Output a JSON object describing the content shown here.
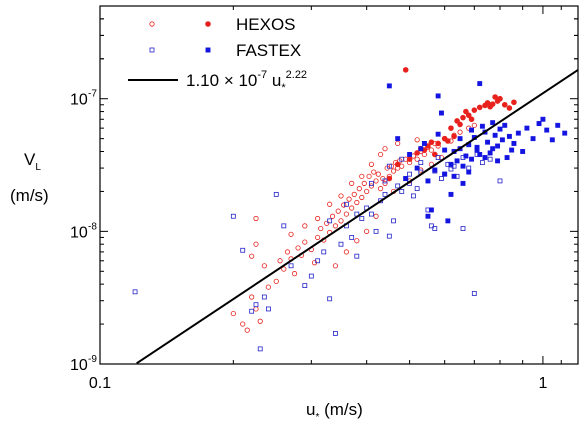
{
  "chart_data": {
    "type": "scatter",
    "xscale": "log",
    "yscale": "log",
    "xlim": [
      0.1,
      1.2
    ],
    "ylim": [
      1e-09,
      5e-07
    ],
    "x_ticks": [
      {
        "value": 0.1,
        "label": "0.1"
      },
      {
        "value": 1,
        "label": "1"
      }
    ],
    "y_ticks": [
      {
        "value": 1e-09,
        "label": "10",
        "exp": "-9"
      },
      {
        "value": 1e-08,
        "label": "10",
        "exp": "-8"
      },
      {
        "value": 1e-07,
        "label": "10",
        "exp": "-7"
      }
    ],
    "xlabel": {
      "main": "u",
      "sub": "*",
      "unit": " (m/s)"
    },
    "ylabel": {
      "main": "V",
      "sub": "L",
      "unit": "(m/s)"
    },
    "legend_position": "top-left",
    "grid": false,
    "series": [
      {
        "name": "HEXOS",
        "marker": "open-circle",
        "color": "#e8211d",
        "points": [
          [
            0.2,
            2.4e-09
          ],
          [
            0.21,
            2e-09
          ],
          [
            0.215,
            1.8e-09
          ],
          [
            0.22,
            3.2e-09
          ],
          [
            0.225,
            2.6e-09
          ],
          [
            0.23,
            2.1e-09
          ],
          [
            0.22,
            6.5e-09
          ],
          [
            0.225,
            8e-09
          ],
          [
            0.225,
            1.25e-08
          ],
          [
            0.235,
            5.5e-09
          ],
          [
            0.24,
            3.8e-09
          ],
          [
            0.25,
            4.2e-09
          ],
          [
            0.255,
            6e-09
          ],
          [
            0.26,
            5.2e-09
          ],
          [
            0.265,
            7e-09
          ],
          [
            0.27,
            6.2e-09
          ],
          [
            0.275,
            4.8e-09
          ],
          [
            0.28,
            7.5e-09
          ],
          [
            0.285,
            6.6e-09
          ],
          [
            0.29,
            8.3e-09
          ],
          [
            0.3,
            7.3e-09
          ],
          [
            0.305,
            5.8e-09
          ],
          [
            0.31,
            9e-09
          ],
          [
            0.315,
            1.05e-08
          ],
          [
            0.32,
            8.6e-09
          ],
          [
            0.325,
            1.15e-08
          ],
          [
            0.33,
            9.8e-09
          ],
          [
            0.335,
            1.3e-08
          ],
          [
            0.34,
            1.1e-08
          ],
          [
            0.345,
            1.42e-08
          ],
          [
            0.35,
            1.2e-08
          ],
          [
            0.355,
            1.58e-08
          ],
          [
            0.36,
            1.35e-08
          ],
          [
            0.365,
            1.75e-08
          ],
          [
            0.37,
            1.5e-08
          ],
          [
            0.375,
            1.9e-08
          ],
          [
            0.38,
            1.65e-08
          ],
          [
            0.385,
            2.1e-08
          ],
          [
            0.39,
            1.8e-08
          ],
          [
            0.395,
            2.3e-08
          ],
          [
            0.4,
            2e-08
          ],
          [
            0.405,
            2.6e-08
          ],
          [
            0.41,
            2.2e-08
          ],
          [
            0.415,
            2.8e-08
          ],
          [
            0.42,
            2.4e-08
          ],
          [
            0.425,
            2.7e-08
          ],
          [
            0.43,
            2.1e-08
          ],
          [
            0.435,
            2.5e-08
          ],
          [
            0.44,
            2.3e-08
          ],
          [
            0.445,
            3e-08
          ],
          [
            0.45,
            2.6e-08
          ],
          [
            0.455,
            3.1e-08
          ],
          [
            0.46,
            2.85e-08
          ],
          [
            0.465,
            3.3e-08
          ],
          [
            0.47,
            3e-08
          ],
          [
            0.475,
            3.4e-08
          ],
          [
            0.48,
            3.1e-08
          ],
          [
            0.49,
            3.5e-08
          ],
          [
            0.5,
            3.3e-08
          ],
          [
            0.51,
            3.7e-08
          ],
          [
            0.52,
            3.5e-08
          ],
          [
            0.53,
            4e-08
          ],
          [
            0.54,
            3.8e-08
          ],
          [
            0.55,
            4.3e-08
          ],
          [
            0.56,
            4.1e-08
          ],
          [
            0.57,
            4.6e-08
          ],
          [
            0.58,
            4.4e-08
          ],
          [
            0.6,
            5e-08
          ],
          [
            0.62,
            4.8e-08
          ],
          [
            0.63,
            5.3e-08
          ],
          [
            0.65,
            5.6e-08
          ],
          [
            0.68,
            6e-08
          ],
          [
            0.7,
            6.3e-08
          ],
          [
            0.34,
            5.5e-09
          ],
          [
            0.36,
            7e-09
          ],
          [
            0.38,
            8.5e-09
          ],
          [
            0.4,
            1e-08
          ],
          [
            0.42,
            1.3e-08
          ],
          [
            0.31,
            1.25e-08
          ],
          [
            0.33,
            1.6e-08
          ],
          [
            0.35,
            1.85e-08
          ],
          [
            0.37,
            2.3e-08
          ],
          [
            0.39,
            2.6e-08
          ],
          [
            0.27,
            9.5e-09
          ],
          [
            0.29,
            1.1e-08
          ],
          [
            0.46,
            2e-08
          ],
          [
            0.5,
            2.4e-08
          ],
          [
            0.53,
            2.9e-08
          ],
          [
            0.56,
            3.2e-08
          ],
          [
            0.44,
            4.2e-08
          ],
          [
            0.47,
            4.6e-08
          ],
          [
            0.43,
            3.8e-08
          ],
          [
            0.52,
            4.9e-08
          ],
          [
            0.59,
            3.6e-08
          ],
          [
            0.41,
            3.2e-08
          ]
        ]
      },
      {
        "name": "HEXOS",
        "marker": "filled-circle",
        "color": "#e8211d",
        "points": [
          [
            0.49,
            1.65e-07
          ],
          [
            0.45,
            2.5e-08
          ],
          [
            0.47,
            3.2e-08
          ],
          [
            0.5,
            3.5e-08
          ],
          [
            0.52,
            3.9e-08
          ],
          [
            0.54,
            4.1e-08
          ],
          [
            0.55,
            4.4e-08
          ],
          [
            0.57,
            3.8e-08
          ],
          [
            0.58,
            4.6e-08
          ],
          [
            0.6,
            5e-08
          ],
          [
            0.61,
            4.8e-08
          ],
          [
            0.63,
            5.2e-08
          ],
          [
            0.64,
            6.8e-08
          ],
          [
            0.66,
            7.2e-08
          ],
          [
            0.67,
            8e-08
          ],
          [
            0.68,
            7.5e-08
          ],
          [
            0.7,
            8.2e-08
          ],
          [
            0.72,
            8.6e-08
          ],
          [
            0.74,
            8.9e-08
          ],
          [
            0.75,
            9.3e-08
          ],
          [
            0.76,
            8.7e-08
          ],
          [
            0.77,
            9.1e-08
          ],
          [
            0.78,
            1.03e-07
          ],
          [
            0.79,
            9.6e-08
          ],
          [
            0.8,
            1e-07
          ],
          [
            0.82,
            9e-08
          ],
          [
            0.84,
            8.5e-08
          ],
          [
            0.86,
            9.4e-08
          ],
          [
            0.62,
            6e-08
          ],
          [
            0.65,
            6.4e-08
          ],
          [
            0.69,
            7e-08
          ],
          [
            0.56,
            4.7e-08
          ],
          [
            0.53,
            4.2e-08
          ]
        ]
      },
      {
        "name": "FASTEX",
        "marker": "open-square",
        "color": "#2323c8",
        "points": [
          [
            0.12,
            3.5e-09
          ],
          [
            0.2,
            1.3e-08
          ],
          [
            0.21,
            7.2e-09
          ],
          [
            0.22,
            2.5e-09
          ],
          [
            0.225,
            2.8e-09
          ],
          [
            0.23,
            1.3e-09
          ],
          [
            0.235,
            3.2e-09
          ],
          [
            0.24,
            2.6e-09
          ],
          [
            0.25,
            1.9e-08
          ],
          [
            0.26,
            1.1e-08
          ],
          [
            0.27,
            5.5e-09
          ],
          [
            0.29,
            3.9e-09
          ],
          [
            0.3,
            4.6e-09
          ],
          [
            0.31,
            6e-09
          ],
          [
            0.32,
            7e-09
          ],
          [
            0.33,
            3.1e-09
          ],
          [
            0.34,
            1.7e-09
          ],
          [
            0.35,
            8e-09
          ],
          [
            0.36,
            1.1e-08
          ],
          [
            0.37,
            9e-09
          ],
          [
            0.38,
            6.5e-09
          ],
          [
            0.39,
            1.25e-08
          ],
          [
            0.4,
            1.5e-08
          ],
          [
            0.41,
            1.35e-08
          ],
          [
            0.42,
            1e-08
          ],
          [
            0.43,
            1.7e-08
          ],
          [
            0.44,
            1.9e-08
          ],
          [
            0.45,
            9.2e-09
          ],
          [
            0.46,
            1.2e-08
          ],
          [
            0.47,
            2.2e-08
          ],
          [
            0.48,
            2e-08
          ],
          [
            0.49,
            2.5e-08
          ],
          [
            0.5,
            2.3e-08
          ],
          [
            0.51,
            1.85e-08
          ],
          [
            0.52,
            2.1e-08
          ],
          [
            0.53,
            2.8e-08
          ],
          [
            0.55,
            1.45e-08
          ],
          [
            0.56,
            1.1e-08
          ],
          [
            0.57,
            1.05e-08
          ],
          [
            0.59,
            2.5e-08
          ],
          [
            0.6,
            2.7e-08
          ],
          [
            0.62,
            2.95e-08
          ],
          [
            0.64,
            2.6e-08
          ],
          [
            0.66,
            1.05e-08
          ],
          [
            0.68,
            3e-08
          ],
          [
            0.7,
            3.4e-09
          ],
          [
            0.73,
            3.3e-08
          ],
          [
            0.76,
            3.5e-08
          ],
          [
            0.8,
            2.4e-08
          ],
          [
            0.33,
            1.2e-08
          ],
          [
            0.36,
            1.6e-08
          ],
          [
            0.38,
            1.35e-08
          ],
          [
            0.41,
            2.3e-08
          ],
          [
            0.44,
            2.4e-08
          ],
          [
            0.5,
            2.7e-08
          ],
          [
            0.57,
            2.85e-08
          ],
          [
            0.63,
            3.1e-08
          ],
          [
            0.45,
            3.1e-08
          ],
          [
            0.53,
            3.3e-08
          ],
          [
            0.58,
            3.6e-08
          ],
          [
            0.48,
            3.5e-08
          ],
          [
            0.61,
            3.2e-08
          ],
          [
            0.66,
            3.6e-08
          ],
          [
            0.71,
            3.8e-08
          ]
        ]
      },
      {
        "name": "FASTEX",
        "marker": "filled-square",
        "color": "#1414e0",
        "points": [
          [
            0.45,
            1.25e-07
          ],
          [
            0.47,
            5e-08
          ],
          [
            0.49,
            2.5e-08
          ],
          [
            0.5,
            3.8e-08
          ],
          [
            0.52,
            3e-08
          ],
          [
            0.53,
            4.2e-08
          ],
          [
            0.54,
            4.6e-08
          ],
          [
            0.55,
            1.3e-08
          ],
          [
            0.56,
            1.45e-08
          ],
          [
            0.58,
            5.4e-08
          ],
          [
            0.58,
            1.05e-07
          ],
          [
            0.59,
            7.8e-08
          ],
          [
            0.6,
            4.1e-08
          ],
          [
            0.61,
            1.2e-08
          ],
          [
            0.62,
            1.9e-08
          ],
          [
            0.63,
            4e-08
          ],
          [
            0.64,
            3.4e-08
          ],
          [
            0.65,
            5e-08
          ],
          [
            0.66,
            2.3e-08
          ],
          [
            0.67,
            3.7e-08
          ],
          [
            0.68,
            4.5e-08
          ],
          [
            0.69,
            5.8e-08
          ],
          [
            0.7,
            5.1e-08
          ],
          [
            0.71,
            4.3e-08
          ],
          [
            0.72,
            1.3e-07
          ],
          [
            0.73,
            6.2e-08
          ],
          [
            0.74,
            5.6e-08
          ],
          [
            0.75,
            4.7e-08
          ],
          [
            0.76,
            3.9e-08
          ],
          [
            0.77,
            6.6e-08
          ],
          [
            0.78,
            5.3e-08
          ],
          [
            0.79,
            4.4e-08
          ],
          [
            0.8,
            5.9e-08
          ],
          [
            0.81,
            4.9e-08
          ],
          [
            0.82,
            6.3e-08
          ],
          [
            0.83,
            3.6e-08
          ],
          [
            0.84,
            5.2e-08
          ],
          [
            0.86,
            4.6e-08
          ],
          [
            0.88,
            5.5e-08
          ],
          [
            0.9,
            4e-08
          ],
          [
            0.92,
            6e-08
          ],
          [
            0.95,
            5e-08
          ],
          [
            0.98,
            6.5e-08
          ],
          [
            1.0,
            7e-08
          ],
          [
            1.02,
            5.8e-08
          ],
          [
            1.05,
            4.9e-08
          ],
          [
            1.08,
            6.3e-08
          ],
          [
            1.12,
            5.5e-08
          ],
          [
            0.57,
            2.9e-08
          ],
          [
            0.62,
            3.2e-08
          ],
          [
            0.66,
            3.1e-08
          ],
          [
            0.69,
            3.5e-08
          ],
          [
            0.72,
            3.8e-08
          ],
          [
            0.74,
            3.6e-08
          ],
          [
            0.65,
            4.2e-08
          ],
          [
            0.71,
            4.1e-08
          ],
          [
            0.77,
            4.2e-08
          ],
          [
            0.79,
            3.4e-08
          ],
          [
            0.85,
            4.1e-08
          ],
          [
            0.6,
            2.7e-08
          ],
          [
            0.55,
            2.4e-08
          ],
          [
            0.63,
            2.6e-08
          ],
          [
            0.68,
            2.8e-08
          ]
        ]
      }
    ],
    "fit_line": {
      "label_coef": "1.10",
      "label_times": " × 10",
      "label_exp": "-7",
      "label_var": " u",
      "label_var_sub": "*",
      "label_pow": "2.22",
      "coef": 1.1e-07,
      "power": 2.22,
      "color": "#000000",
      "x_range": [
        0.121,
        1.2
      ]
    },
    "legend": [
      {
        "label": "HEXOS",
        "marker": "open-circle",
        "color": "#e8211d"
      },
      {
        "label": "FASTEX",
        "marker": "open-square",
        "color": "#2323c8"
      }
    ]
  }
}
